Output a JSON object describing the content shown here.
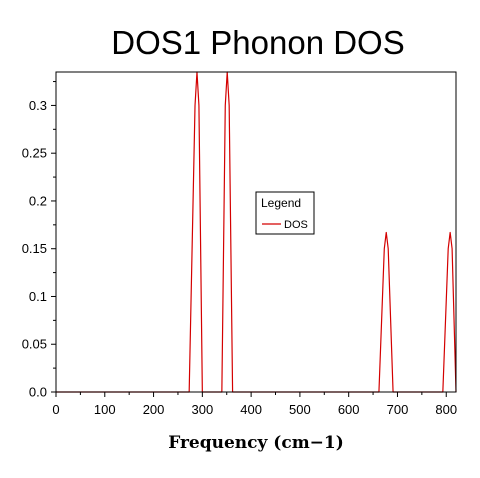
{
  "chart_data": {
    "type": "line",
    "title": "DOS1 Phonon DOS",
    "xlabel": "Frequency (cm−1)",
    "ylabel": "",
    "xlim": [
      0,
      820
    ],
    "ylim": [
      0,
      0.335
    ],
    "xticks": [
      0,
      100,
      200,
      300,
      400,
      500,
      600,
      700,
      800
    ],
    "yticks": [
      0.0,
      0.05,
      0.1,
      0.15,
      0.2,
      0.25,
      0.3
    ],
    "ytick_labels": [
      "0.0",
      "0.05",
      "0.1",
      "0.15",
      "0.2",
      "0.25",
      "0.3"
    ],
    "grid": false,
    "legend": {
      "title": "Legend",
      "placement": "center"
    },
    "series": [
      {
        "name": "DOS",
        "color": "#d40000",
        "x": [
          0,
          273,
          285,
          289,
          293,
          300,
          340,
          347,
          351,
          355,
          362,
          662,
          673,
          677,
          681,
          691,
          793,
          804,
          808,
          812,
          820
        ],
        "y": [
          0,
          0,
          0.3,
          0.335,
          0.3,
          0,
          0,
          0.3,
          0.335,
          0.3,
          0,
          0,
          0.15,
          0.167,
          0.15,
          0,
          0,
          0.15,
          0.167,
          0.15,
          0
        ]
      }
    ]
  }
}
